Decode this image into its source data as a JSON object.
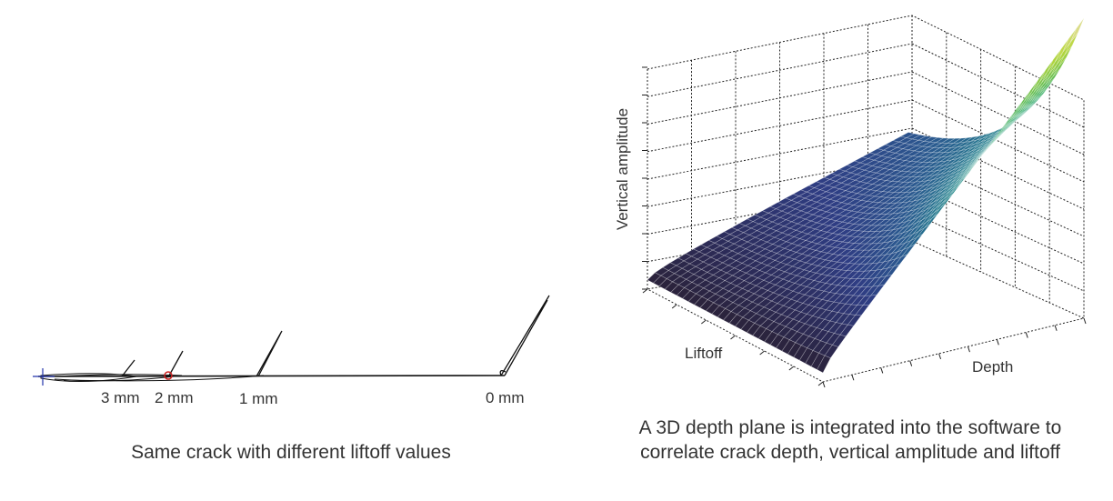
{
  "left_panel": {
    "liftoff_labels": [
      "3 mm",
      "2 mm",
      "1 mm",
      "0 mm"
    ],
    "caption": "Same crack with different liftoff values",
    "colors": {
      "trace": "#111111",
      "marker_cross": "#2233aa",
      "marker_circle": "#cc2222"
    }
  },
  "right_panel": {
    "axis_vertical": "Vertical amplitude",
    "axis_liftoff": "Liftoff",
    "axis_depth": "Depth",
    "caption_line1": "A 3D depth plane is integrated into the software to",
    "caption_line2": "correlate crack depth, vertical amplitude and liftoff",
    "colormap": [
      "#2a1f2e",
      "#2c2b57",
      "#2f3d83",
      "#2b588f",
      "#23758e",
      "#1f8f86",
      "#2aa86a",
      "#6cc04c",
      "#b7d73a",
      "#f0dfb8"
    ]
  }
}
